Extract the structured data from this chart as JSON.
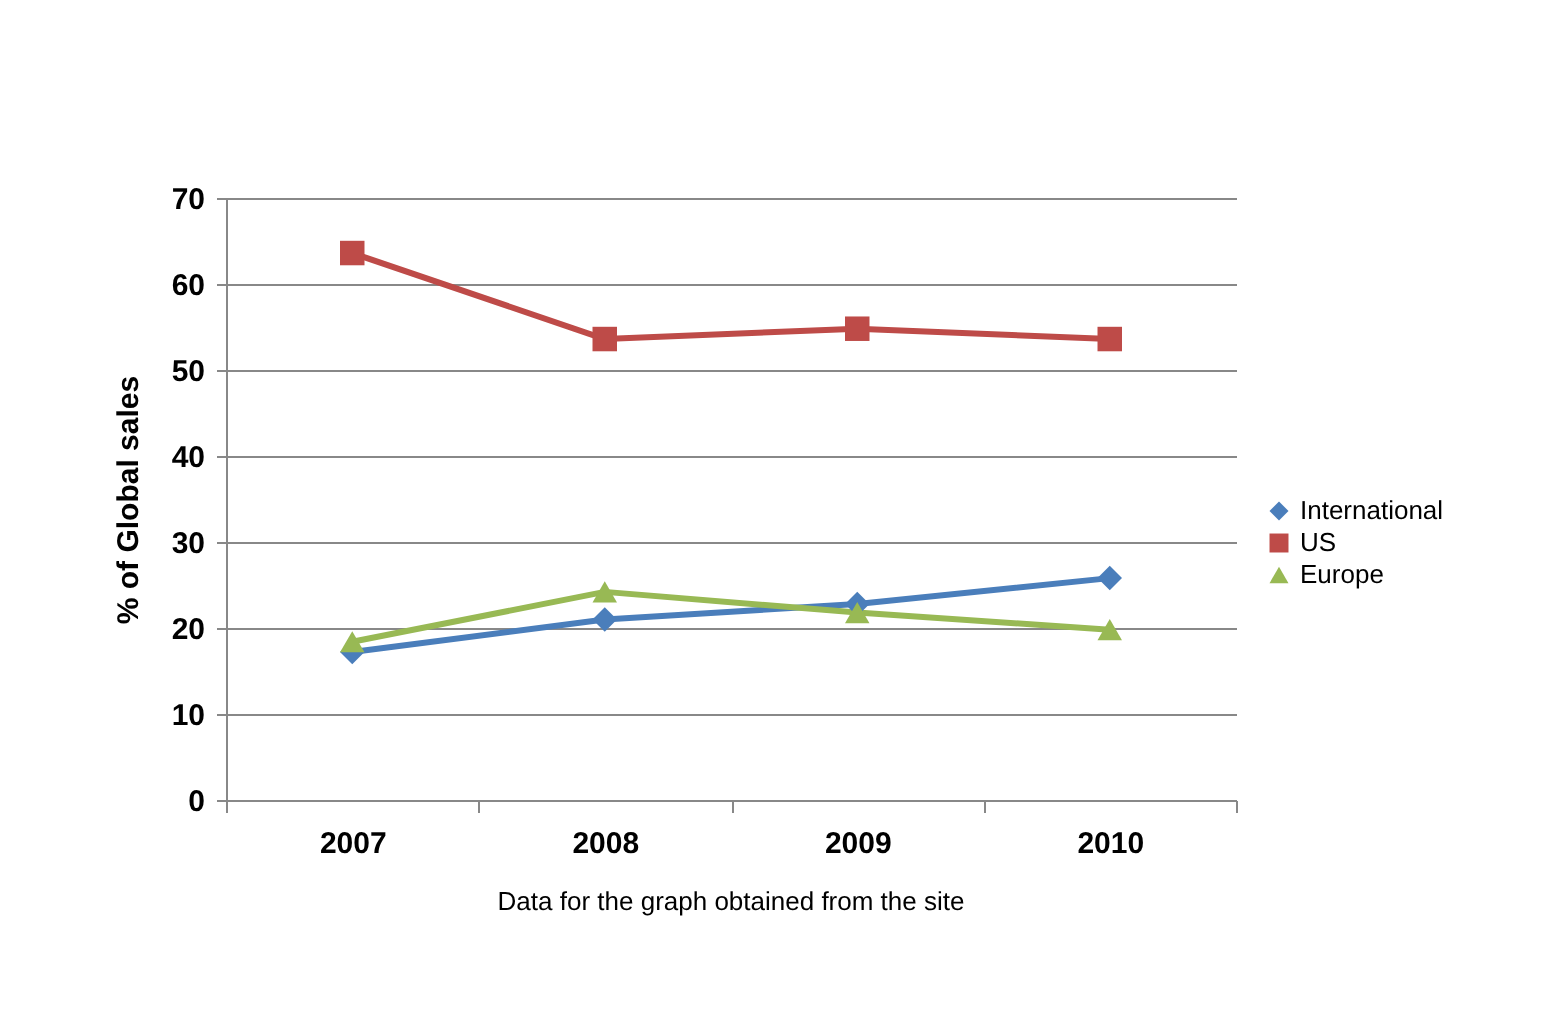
{
  "chart_data": {
    "type": "line",
    "categories": [
      "2007",
      "2008",
      "2009",
      "2010"
    ],
    "ylabel": "% of Global sales",
    "ylim": [
      0,
      70
    ],
    "yticks": [
      0,
      10,
      20,
      30,
      40,
      50,
      60,
      70
    ],
    "grid": "y",
    "legend": "right",
    "series": [
      {
        "name": "International",
        "color": "#4a7ebb",
        "marker": "diamond",
        "values": [
          17.2,
          21,
          22.8,
          25.8
        ]
      },
      {
        "name": "US",
        "color": "#be4b48",
        "marker": "square",
        "values": [
          63.6,
          53.6,
          54.8,
          53.6
        ]
      },
      {
        "name": "Europe",
        "color": "#98b954",
        "marker": "triangle",
        "values": [
          18.4,
          24.2,
          21.8,
          19.8
        ]
      }
    ],
    "annotations": [
      "Data for the graph obtained from the site"
    ]
  }
}
